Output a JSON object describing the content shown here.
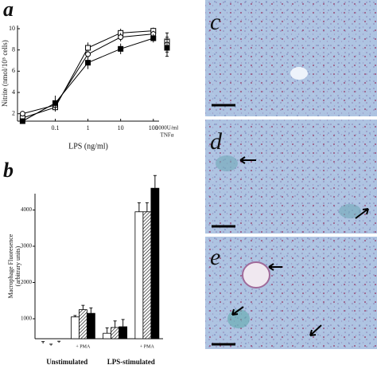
{
  "panel_labels": [
    "a",
    "b",
    "c",
    "d",
    "e"
  ],
  "chart_data": [
    {
      "type": "line",
      "x_label": "LPS (ng/ml)",
      "y_label": "Nitrite (nmol/10⁵ cells)",
      "log_x": true,
      "xlim": [
        0.007,
        150
      ],
      "xticks": [
        0.1,
        1,
        10,
        100
      ],
      "ylim": [
        1.3,
        10.3
      ],
      "yticks": [
        2,
        4,
        6,
        8,
        10
      ],
      "x": [
        0.01,
        0.1,
        1,
        10,
        100
      ],
      "extra_label": [
        "1000U/ml",
        "TNFα"
      ],
      "series": [
        {
          "marker": "square",
          "color": "#ffffff",
          "values": [
            1.6,
            2.6,
            8.2,
            9.6,
            9.8
          ],
          "errors": [
            0.2,
            0.4,
            0.5,
            0.4,
            0.3
          ],
          "extra_value": 8.8,
          "extra_error": 0.8
        },
        {
          "marker": "circle",
          "color": "#ffffff",
          "values": [
            2.0,
            2.8,
            7.6,
            9.2,
            9.5
          ],
          "errors": [
            0.2,
            0.4,
            0.4,
            0.4,
            0.3
          ],
          "extra_value": 8.5,
          "extra_error": 0.7
        },
        {
          "marker": "square",
          "color": "#000000",
          "values": [
            1.3,
            3.0,
            6.8,
            8.1,
            9.1
          ],
          "errors": [
            0.2,
            0.7,
            0.6,
            0.5,
            0.4
          ],
          "extra_value": 8.2,
          "extra_error": 0.8
        }
      ]
    },
    {
      "type": "bar",
      "y_label": [
        "Macrophage Fluoresence",
        "(arbitrary units)"
      ],
      "ylim": [
        450,
        4450
      ],
      "yticks": [
        1000,
        2000,
        3000,
        4000
      ],
      "categories": [
        null,
        "+ PMA",
        null,
        "+ PMA"
      ],
      "groups": [
        "Unstimulated",
        "LPS-stimulated"
      ],
      "series": [
        {
          "color": "#ffffff",
          "pattern": "none",
          "values": [
            320,
            1050,
            600,
            3950
          ],
          "errors": [
            50,
            40,
            150,
            250
          ]
        },
        {
          "color": "#ffffff",
          "pattern": "hatch",
          "values": [
            260,
            1250,
            760,
            3950
          ],
          "errors": [
            40,
            120,
            180,
            250
          ]
        },
        {
          "color": "#000000",
          "pattern": "none",
          "values": [
            340,
            1150,
            780,
            4600
          ],
          "errors": [
            40,
            150,
            200,
            350
          ]
        }
      ]
    }
  ]
}
